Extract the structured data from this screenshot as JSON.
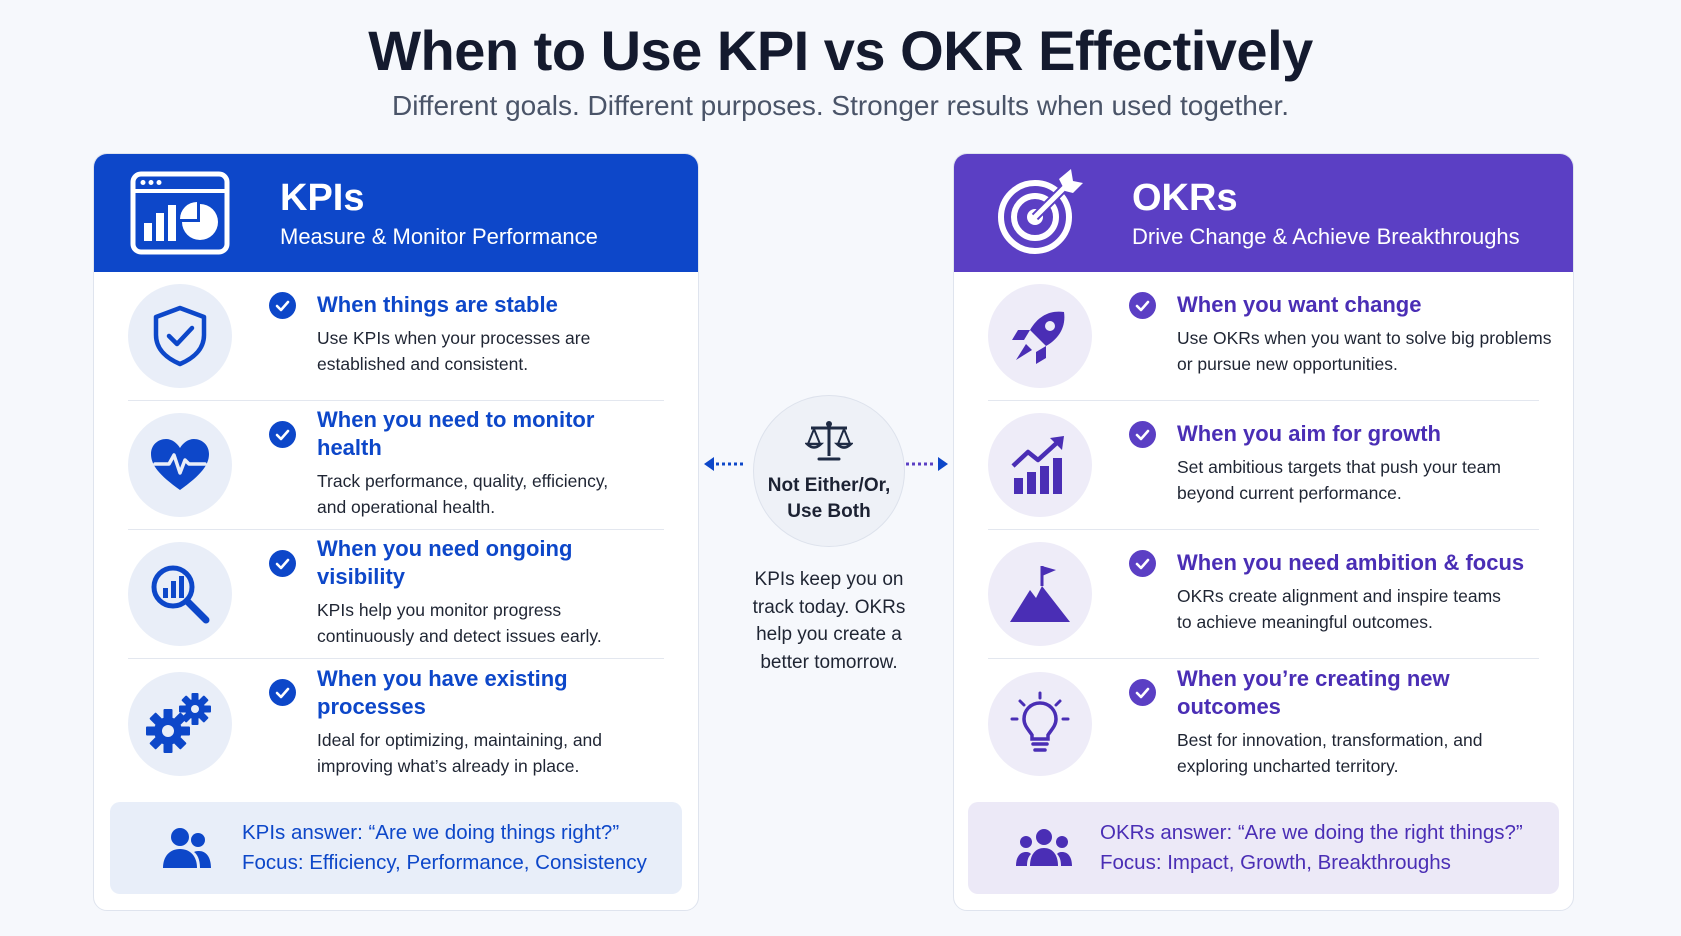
{
  "header": {
    "title": "When to Use KPI vs OKR Effectively",
    "subtitle": "Different goals. Different purposes. Stronger results when used together."
  },
  "kpi": {
    "title": "KPIs",
    "subtitle": "Measure & Monitor Performance",
    "accent": "#0d47c9",
    "icon": "dashboard-chart-icon",
    "rows": [
      {
        "icon": "shield-check-icon",
        "heading": "When things are stable",
        "desc": "Use KPIs when your processes are established and consistent."
      },
      {
        "icon": "heart-pulse-icon",
        "heading": "When you need to monitor health",
        "desc": "Track performance, quality, efficiency, and operational health."
      },
      {
        "icon": "magnifier-chart-icon",
        "heading": "When you need ongoing visibility",
        "desc": "KPIs help you monitor progress continuously and detect issues early."
      },
      {
        "icon": "gears-icon",
        "heading": "When you have existing processes",
        "desc": "Ideal for optimizing, maintaining, and improving what’s already in place."
      }
    ],
    "footer": {
      "icon": "team-icon",
      "question": "KPIs answer: “Are we doing things right?”",
      "focus": "Focus: Efficiency, Performance, Consistency"
    }
  },
  "okr": {
    "title": "OKRs",
    "subtitle": "Drive Change & Achieve Breakthroughs",
    "accent": "#5b3fc4",
    "icon": "target-arrow-icon",
    "rows": [
      {
        "icon": "rocket-icon",
        "heading": "When you want change",
        "desc": "Use OKRs when you want to solve big problems or pursue new opportunities."
      },
      {
        "icon": "growth-chart-icon",
        "heading": "When you aim for growth",
        "desc": "Set ambitious targets that push your team beyond current performance."
      },
      {
        "icon": "mountain-flag-icon",
        "heading": "When you need ambition & focus",
        "desc": "OKRs create alignment and inspire teams to achieve meaningful outcomes."
      },
      {
        "icon": "lightbulb-icon",
        "heading": "When you’re creating new outcomes",
        "desc": "Best for innovation, transformation, and exploring uncharted territory."
      }
    ],
    "footer": {
      "icon": "group-icon",
      "question": "OKRs answer: “Are we doing the right things?”",
      "focus": "Focus: Impact, Growth, Breakthroughs"
    }
  },
  "center": {
    "icon": "scales-icon",
    "label": "Not Either/Or, Use Both",
    "note": "KPIs keep you on track today. OKRs help you create a better tomorrow."
  }
}
